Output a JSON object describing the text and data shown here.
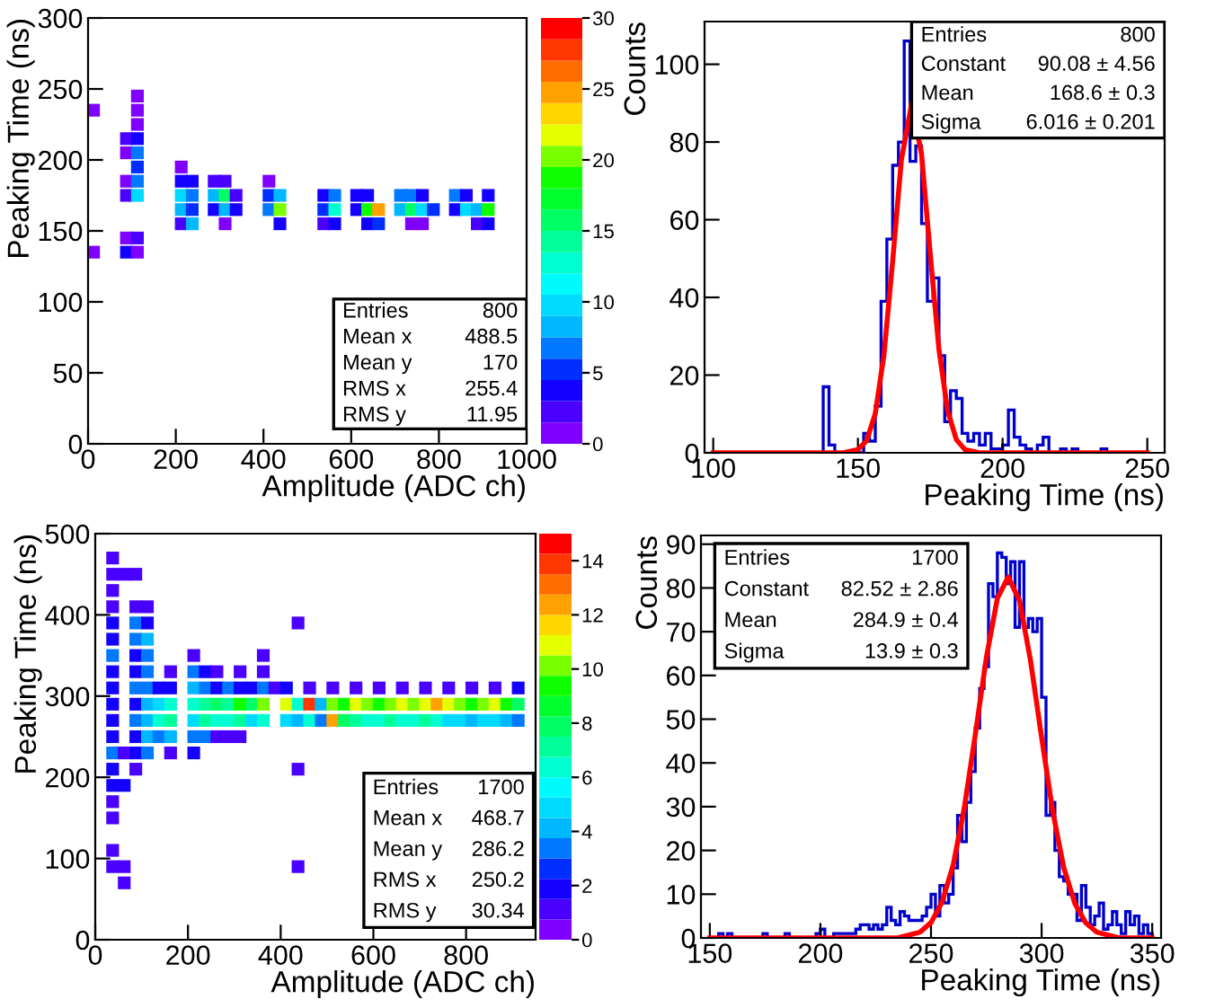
{
  "chart_data": [
    {
      "type": "scatter",
      "marker": "square",
      "xlabel": "Amplitude (ADC ch)",
      "ylabel": "Peaking Time (ns)",
      "xlim": [
        0,
        1000
      ],
      "ylim": [
        0,
        300
      ],
      "xticks": [
        0,
        200,
        400,
        600,
        800,
        1000
      ],
      "yticks": [
        0,
        50,
        100,
        150,
        200,
        250,
        300
      ],
      "clim": [
        0,
        30
      ],
      "cticks": [
        0,
        5,
        10,
        15,
        20,
        25,
        30
      ],
      "annotations": [
        "Entries",
        "800",
        "Mean x",
        "488.5",
        "Mean y",
        "170",
        "RMS x",
        "255.4",
        "RMS y",
        "11.95"
      ],
      "x": [
        112.5,
        12.5,
        112.5,
        112.5,
        87.5,
        112.5,
        87.5,
        112.5,
        112.5,
        212.5,
        87.5,
        112.5,
        212.5,
        237.5,
        287.5,
        312.5,
        412.5,
        87.5,
        112.5,
        212.5,
        237.5,
        287.5,
        312.5,
        337.5,
        412.5,
        437.5,
        537.5,
        562.5,
        612.5,
        637.5,
        712.5,
        737.5,
        762.5,
        837.5,
        862.5,
        912.5,
        212.5,
        237.5,
        287.5,
        312.5,
        337.5,
        412.5,
        437.5,
        537.5,
        562.5,
        612.5,
        637.5,
        662.5,
        712.5,
        737.5,
        762.5,
        787.5,
        837.5,
        862.5,
        887.5,
        912.5,
        212.5,
        237.5,
        312.5,
        437.5,
        537.5,
        562.5,
        637.5,
        662.5,
        737.5,
        762.5,
        887.5,
        912.5,
        87.5,
        112.5,
        12.5,
        87.5,
        112.5
      ],
      "values": [
        245,
        235,
        235,
        225,
        215,
        215,
        205,
        205,
        195,
        195,
        185,
        185,
        185,
        185,
        185,
        185,
        185,
        175,
        175,
        175,
        175,
        175,
        175,
        175,
        175,
        175,
        175,
        175,
        175,
        175,
        175,
        175,
        175,
        175,
        175,
        175,
        165,
        165,
        165,
        165,
        165,
        165,
        165,
        165,
        165,
        165,
        165,
        165,
        165,
        165,
        165,
        165,
        165,
        165,
        165,
        165,
        155,
        155,
        155,
        155,
        155,
        155,
        155,
        155,
        155,
        155,
        155,
        155,
        145,
        145,
        135,
        135,
        135
      ],
      "cvalues": [
        1,
        1,
        1,
        1,
        2,
        3,
        1,
        7,
        5,
        1,
        1,
        6,
        3,
        3,
        2,
        2,
        1,
        2,
        9,
        10,
        6,
        8,
        15,
        2,
        5,
        8,
        3,
        6,
        3,
        4,
        6,
        7,
        4,
        6,
        4,
        3,
        8,
        5,
        3,
        8,
        3,
        6,
        20,
        5,
        12,
        4,
        18,
        25,
        8,
        15,
        10,
        5,
        4,
        10,
        8,
        18,
        2,
        8,
        1,
        3,
        2,
        3,
        4,
        5,
        1,
        1,
        2,
        3,
        1,
        2,
        1,
        3,
        1
      ]
    },
    {
      "type": "histogram",
      "xlabel": "Peaking Time (ns)",
      "ylabel": "Counts",
      "xlim": [
        97,
        256
      ],
      "ylim": [
        0,
        111
      ],
      "xticks": [
        100,
        150,
        200,
        250
      ],
      "yticks": [
        0,
        20,
        40,
        60,
        80,
        100
      ],
      "annotations": [
        "Entries",
        "800",
        "Constant",
        "90.08 ± 4.56",
        "Mean",
        "168.6 ± 0.3",
        "Sigma",
        "6.016 ± 0.201"
      ],
      "bins": [
        100,
        102,
        104,
        106,
        108,
        110,
        112,
        114,
        116,
        118,
        120,
        122,
        124,
        126,
        128,
        130,
        132,
        134,
        136,
        138,
        140,
        142,
        144,
        146,
        148,
        150,
        152,
        154,
        156,
        158,
        160,
        162,
        164,
        166,
        168,
        170,
        172,
        174,
        176,
        178,
        180,
        182,
        184,
        186,
        188,
        190,
        192,
        194,
        196,
        198,
        200,
        202,
        204,
        206,
        208,
        210,
        212,
        214,
        216,
        218,
        220,
        222,
        224,
        226,
        228,
        230,
        232,
        234,
        236,
        238,
        240,
        242,
        244,
        246,
        248,
        250
      ],
      "series": [
        {
          "type": "histogram",
          "color": "#0000cc",
          "values": [
            0,
            0,
            0,
            0,
            0,
            0,
            0,
            0,
            0,
            0,
            0,
            0,
            0,
            0,
            0,
            0,
            0,
            0,
            0,
            17,
            2,
            0,
            0,
            0,
            0,
            0,
            5,
            3,
            12,
            39,
            55,
            74,
            80,
            106,
            75,
            79,
            59,
            39,
            45,
            25,
            8,
            16,
            14,
            5,
            3,
            5,
            2,
            5,
            1,
            1,
            2,
            11,
            4,
            2,
            1,
            0,
            2,
            4,
            0,
            0,
            1,
            0,
            1,
            0,
            0,
            0,
            0,
            1,
            0,
            0,
            0,
            0,
            0,
            0,
            0
          ]
        },
        {
          "type": "line",
          "color": "#ff0000",
          "x": [
            100,
            145,
            150,
            153,
            156,
            159,
            162,
            165,
            168.6,
            172,
            175,
            178,
            181,
            184,
            187,
            192,
            250
          ],
          "values": [
            0,
            0,
            0.8,
            3.1,
            10.1,
            25.2,
            49.3,
            75.3,
            90.1,
            76.8,
            51.1,
            26.6,
            10.8,
            3.4,
            0.8,
            0,
            0
          ]
        }
      ]
    },
    {
      "type": "scatter",
      "marker": "square",
      "xlabel": "Amplitude (ADC ch)",
      "ylabel": "Peaking Time (ns)",
      "xlim": [
        0,
        950
      ],
      "ylim": [
        0,
        500
      ],
      "xticks": [
        0,
        200,
        400,
        600,
        800
      ],
      "yticks": [
        0,
        100,
        200,
        300,
        400,
        500
      ],
      "clim": [
        0,
        15
      ],
      "cticks": [
        0,
        2,
        4,
        6,
        8,
        10,
        12,
        14
      ],
      "annotations": [
        "Entries",
        "1700",
        "Mean x",
        "468.7",
        "Mean y",
        "286.2",
        "RMS x",
        "250.2",
        "RMS y",
        "30.34"
      ],
      "x": [
        37.5,
        37.5,
        62.5,
        87.5,
        37.5,
        37.5,
        87.5,
        112.5,
        37.5,
        87.5,
        112.5,
        437.5,
        37.5,
        87.5,
        112.5,
        37.5,
        87.5,
        112.5,
        212.5,
        362.5,
        37.5,
        87.5,
        112.5,
        162.5,
        212.5,
        237.5,
        262.5,
        312.5,
        362.5,
        37.5,
        87.5,
        112.5,
        137.5,
        162.5,
        212.5,
        237.5,
        262.5,
        287.5,
        312.5,
        337.5,
        362.5,
        387.5,
        412.5,
        462.5,
        512.5,
        562.5,
        612.5,
        662.5,
        712.5,
        762.5,
        812.5,
        862.5,
        912.5,
        37.5,
        87.5,
        112.5,
        137.5,
        162.5,
        212.5,
        237.5,
        262.5,
        287.5,
        312.5,
        337.5,
        362.5,
        412.5,
        437.5,
        462.5,
        487.5,
        512.5,
        537.5,
        562.5,
        587.5,
        612.5,
        637.5,
        662.5,
        687.5,
        712.5,
        737.5,
        762.5,
        787.5,
        812.5,
        837.5,
        862.5,
        887.5,
        912.5,
        37.5,
        87.5,
        112.5,
        137.5,
        162.5,
        212.5,
        237.5,
        262.5,
        287.5,
        312.5,
        337.5,
        362.5,
        412.5,
        437.5,
        462.5,
        487.5,
        512.5,
        537.5,
        562.5,
        587.5,
        612.5,
        637.5,
        662.5,
        687.5,
        712.5,
        737.5,
        762.5,
        787.5,
        812.5,
        837.5,
        862.5,
        887.5,
        912.5,
        37.5,
        87.5,
        112.5,
        137.5,
        162.5,
        212.5,
        237.5,
        262.5,
        287.5,
        312.5,
        37.5,
        62.5,
        87.5,
        112.5,
        162.5,
        212.5,
        37.5,
        87.5,
        437.5,
        37.5,
        62.5,
        37.5,
        37.5,
        37.5,
        37.5,
        62.5,
        437.5,
        62.5
      ],
      "values": [
        470,
        450,
        450,
        450,
        430,
        410,
        410,
        410,
        390,
        390,
        390,
        390,
        370,
        370,
        370,
        350,
        350,
        350,
        350,
        350,
        330,
        330,
        330,
        330,
        330,
        330,
        330,
        330,
        330,
        310,
        310,
        310,
        310,
        310,
        310,
        310,
        310,
        310,
        310,
        310,
        310,
        310,
        310,
        310,
        310,
        310,
        310,
        310,
        310,
        310,
        310,
        310,
        310,
        290,
        290,
        290,
        290,
        290,
        290,
        290,
        290,
        290,
        290,
        290,
        290,
        290,
        290,
        290,
        290,
        290,
        290,
        290,
        290,
        290,
        290,
        290,
        290,
        290,
        290,
        290,
        290,
        290,
        290,
        290,
        290,
        290,
        270,
        270,
        270,
        270,
        270,
        270,
        270,
        270,
        270,
        270,
        270,
        270,
        270,
        270,
        270,
        270,
        270,
        270,
        270,
        270,
        270,
        270,
        270,
        270,
        270,
        270,
        270,
        270,
        270,
        270,
        270,
        270,
        270,
        250,
        250,
        250,
        250,
        250,
        250,
        250,
        250,
        250,
        250,
        230,
        230,
        230,
        230,
        230,
        230,
        210,
        210,
        210,
        190,
        190,
        170,
        150,
        110,
        90,
        90,
        90,
        70
      ],
      "cvalues": [
        1,
        1,
        1,
        1,
        1,
        1,
        1,
        1,
        2,
        3,
        2,
        1,
        2,
        3,
        4,
        3,
        2,
        3,
        1,
        1,
        2,
        2,
        3,
        1,
        3,
        2,
        1,
        1,
        1,
        2,
        3,
        3,
        2,
        2,
        4,
        3,
        2,
        3,
        2,
        2,
        3,
        1,
        2,
        1,
        1,
        1,
        1,
        1,
        1,
        1,
        1,
        1,
        2,
        2,
        2,
        4,
        5,
        6,
        6,
        7,
        8,
        7,
        9,
        8,
        10,
        11,
        6,
        14,
        4,
        10,
        9,
        11,
        10,
        9,
        10,
        11,
        10,
        11,
        12,
        11,
        10,
        9,
        10,
        11,
        9,
        8,
        2,
        3,
        4,
        6,
        7,
        5,
        7,
        6,
        6,
        7,
        5,
        6,
        5,
        4,
        6,
        3,
        12,
        8,
        7,
        6,
        6,
        7,
        6,
        6,
        7,
        6,
        5,
        5,
        4,
        5,
        5,
        4,
        3,
        2,
        2,
        4,
        3,
        4,
        3,
        3,
        1,
        1,
        1,
        3,
        1,
        2,
        3,
        1,
        2,
        2,
        1,
        1,
        2,
        2,
        1,
        1,
        1,
        1,
        1,
        1,
        1
      ]
    },
    {
      "type": "histogram",
      "xlabel": "Peaking Time (ns)",
      "ylabel": "Counts",
      "xlim": [
        146,
        354
      ],
      "ylim": [
        0,
        92
      ],
      "xticks": [
        150,
        200,
        250,
        300,
        350
      ],
      "yticks": [
        0,
        10,
        20,
        30,
        40,
        50,
        60,
        70,
        80,
        90
      ],
      "annotations": [
        "Entries",
        "1700",
        "Constant",
        "82.52 ± 2.86",
        "Mean",
        "284.9 ± 0.4",
        "Sigma",
        "13.9 ± 0.3"
      ],
      "bins": [
        150,
        152,
        154,
        156,
        158,
        160,
        162,
        164,
        166,
        168,
        170,
        172,
        174,
        176,
        178,
        180,
        182,
        184,
        186,
        188,
        190,
        192,
        194,
        196,
        198,
        200,
        202,
        204,
        206,
        208,
        210,
        212,
        214,
        216,
        218,
        220,
        222,
        224,
        226,
        228,
        230,
        232,
        234,
        236,
        238,
        240,
        242,
        244,
        246,
        248,
        250,
        252,
        254,
        256,
        258,
        260,
        262,
        264,
        266,
        268,
        270,
        272,
        274,
        276,
        278,
        280,
        282,
        284,
        286,
        288,
        290,
        292,
        294,
        296,
        298,
        300,
        302,
        304,
        306,
        308,
        310,
        312,
        314,
        316,
        318,
        320,
        322,
        324,
        326,
        328,
        330,
        332,
        334,
        336,
        338,
        340,
        342,
        344,
        346,
        348,
        350
      ],
      "series": [
        {
          "type": "histogram",
          "color": "#0000cc",
          "values": [
            0,
            0,
            1,
            0,
            1,
            0,
            0,
            0,
            0,
            0,
            0,
            0,
            1,
            0,
            0,
            0,
            0,
            1,
            0,
            0,
            0,
            0,
            0,
            0,
            1,
            2,
            0,
            0,
            1,
            1,
            1,
            1,
            1,
            2,
            3,
            3,
            2,
            3,
            2,
            3,
            7,
            4,
            3,
            6,
            5,
            4,
            4,
            4,
            5,
            7,
            10,
            5,
            12,
            8,
            10,
            16,
            28,
            22,
            31,
            38,
            48,
            57,
            62,
            81,
            78,
            88,
            87,
            81,
            86,
            71,
            86,
            71,
            73,
            70,
            73,
            55,
            28,
            31,
            20,
            14,
            13,
            10,
            10,
            4,
            12,
            7,
            3,
            5,
            8,
            2,
            3,
            6,
            3,
            1,
            6,
            3,
            5,
            1,
            3,
            1
          ]
        },
        {
          "type": "line",
          "color": "#ff0000",
          "x": [
            150,
            235,
            245,
            250,
            255,
            260,
            265,
            270,
            275,
            280,
            284.9,
            290,
            295,
            300,
            305,
            310,
            315,
            320,
            325,
            335,
            350
          ],
          "values": [
            0,
            0,
            1.3,
            3.5,
            8.2,
            16.6,
            29.6,
            46.4,
            64.0,
            77.6,
            82.5,
            77.1,
            63.4,
            45.8,
            29.0,
            16.1,
            7.9,
            3.4,
            1.3,
            0,
            0
          ]
        }
      ]
    }
  ]
}
